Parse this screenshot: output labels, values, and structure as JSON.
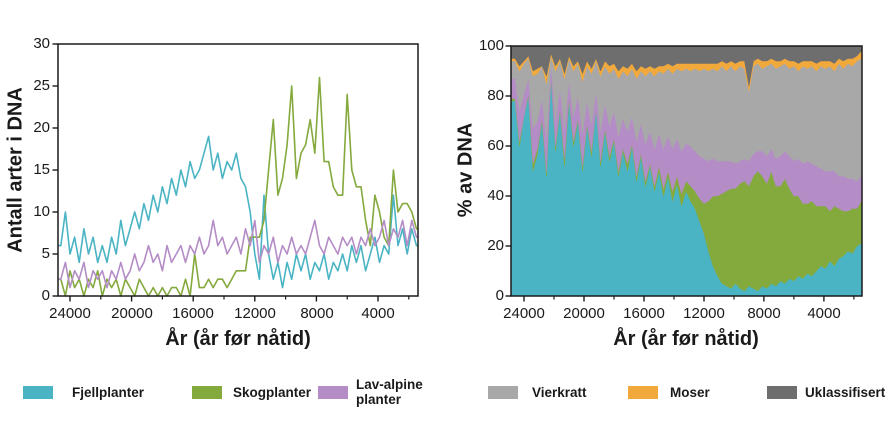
{
  "figure": {
    "background": "#ffffff",
    "text_color": "#1a1a1a"
  },
  "chart_data": [
    {
      "type": "line",
      "title": "",
      "xlabel": "År (år før nåtid)",
      "ylabel": "Antall arter i DNA",
      "x_axis_reversed": true,
      "xlim": [
        24780,
        1400
      ],
      "ylim": [
        0,
        30
      ],
      "x_ticks": [
        24000,
        20000,
        16000,
        12000,
        8000,
        4000
      ],
      "x_minor_ticks": [
        22000,
        18000,
        14000,
        10000,
        6000,
        2000
      ],
      "y_ticks": [
        0,
        5,
        10,
        15,
        20,
        25,
        30
      ],
      "grid": false,
      "legend_position": "bottom",
      "x": [
        24600,
        24300,
        24000,
        23700,
        23400,
        23100,
        22800,
        22500,
        22200,
        21900,
        21600,
        21300,
        21000,
        20700,
        20400,
        20100,
        19800,
        19500,
        19200,
        18900,
        18600,
        18300,
        18000,
        17700,
        17400,
        17100,
        16800,
        16500,
        16200,
        15900,
        15600,
        15300,
        15000,
        14700,
        14400,
        14100,
        13800,
        13500,
        13200,
        12900,
        12600,
        12300,
        12000,
        11700,
        11400,
        11100,
        10800,
        10500,
        10200,
        9900,
        9600,
        9300,
        9000,
        8700,
        8400,
        8100,
        7800,
        7500,
        7200,
        6900,
        6600,
        6300,
        6000,
        5700,
        5400,
        5100,
        4800,
        4500,
        4200,
        3900,
        3600,
        3300,
        3000,
        2700,
        2400,
        2100,
        1800,
        1500
      ],
      "series": [
        {
          "name": "Fjellplanter",
          "color": "#4ab4c4",
          "values": [
            6,
            10,
            5,
            7,
            4,
            8,
            5,
            7,
            4,
            6,
            4,
            7,
            5,
            9,
            6,
            8,
            10,
            8,
            11,
            9,
            12,
            10,
            13,
            11,
            14,
            12,
            15,
            13,
            16,
            14,
            15,
            17,
            19,
            15,
            17,
            14,
            16,
            15,
            17,
            14,
            13,
            10,
            5,
            2,
            12,
            5,
            2,
            4,
            1,
            4,
            2,
            5,
            3,
            5,
            2,
            4,
            3,
            5,
            2,
            4,
            3,
            5,
            3,
            6,
            4,
            6,
            3,
            5,
            7,
            4,
            6,
            5,
            12,
            6,
            8,
            5,
            8,
            6
          ]
        },
        {
          "name": "Skogplanter",
          "color": "#84a93d",
          "values": [
            2,
            0,
            3,
            1,
            2,
            0,
            2,
            1,
            3,
            0,
            2,
            1,
            2,
            0,
            2,
            1,
            0,
            2,
            1,
            0,
            1,
            0,
            1,
            0,
            1,
            1,
            0,
            2,
            0,
            5,
            1,
            1,
            2,
            1,
            2,
            2,
            1,
            2,
            3,
            3,
            3,
            7,
            7,
            7,
            9,
            15,
            21,
            12,
            14,
            18,
            25,
            14,
            17,
            18,
            21,
            17,
            26,
            16,
            16,
            13,
            12,
            12,
            24,
            15,
            13,
            13,
            9,
            6,
            12,
            10,
            7,
            6,
            15,
            10,
            11,
            11,
            10,
            8
          ]
        },
        {
          "name": "Lav-alpine planter",
          "color": "#b48cc6",
          "values": [
            2,
            4,
            1,
            3,
            2,
            4,
            1,
            3,
            2,
            3,
            1,
            3,
            2,
            4,
            2,
            3,
            5,
            3,
            4,
            6,
            4,
            5,
            3,
            6,
            4,
            5,
            6,
            4,
            6,
            5,
            7,
            5,
            6,
            9,
            6,
            7,
            5,
            6,
            7,
            5,
            8,
            6,
            9,
            4,
            6,
            5,
            7,
            4,
            6,
            5,
            7,
            5,
            6,
            5,
            7,
            9,
            6,
            5,
            7,
            6,
            5,
            7,
            6,
            7,
            5,
            7,
            6,
            8,
            6,
            7,
            9,
            6,
            8,
            7,
            9,
            6,
            9,
            7
          ]
        }
      ]
    },
    {
      "type": "area-stacked",
      "title": "",
      "xlabel": "År (år før nåtid)",
      "ylabel": "% av DNA",
      "x_axis_reversed": true,
      "xlim": [
        24870,
        1460
      ],
      "ylim": [
        0,
        100
      ],
      "x_ticks": [
        24000,
        20000,
        16000,
        12000,
        8000,
        4000
      ],
      "x_minor_ticks": [
        22000,
        18000,
        14000,
        10000,
        6000,
        2000
      ],
      "y_ticks": [
        0,
        20,
        40,
        60,
        80,
        100
      ],
      "grid": false,
      "legend_position": "bottom",
      "stack_total": 100,
      "x": [
        24600,
        24300,
        24000,
        23700,
        23400,
        23100,
        22800,
        22500,
        22200,
        21900,
        21600,
        21300,
        21000,
        20700,
        20400,
        20100,
        19800,
        19500,
        19200,
        18900,
        18600,
        18300,
        18000,
        17700,
        17400,
        17100,
        16800,
        16500,
        16200,
        15900,
        15600,
        15300,
        15000,
        14700,
        14400,
        14100,
        13800,
        13500,
        13200,
        12900,
        12600,
        12300,
        12000,
        11700,
        11400,
        11100,
        10800,
        10500,
        10200,
        9900,
        9600,
        9300,
        9000,
        8700,
        8400,
        8100,
        7800,
        7500,
        7200,
        6900,
        6600,
        6300,
        6000,
        5700,
        5400,
        5100,
        4800,
        4500,
        4200,
        3900,
        3600,
        3300,
        3000,
        2700,
        2400,
        2100,
        1800,
        1500
      ],
      "series": [
        {
          "name": "Fjellplanter",
          "color": "#4ab4c4",
          "values": [
            78,
            60,
            72,
            80,
            50,
            57,
            70,
            48,
            88,
            58,
            74,
            52,
            78,
            60,
            70,
            50,
            68,
            56,
            75,
            52,
            66,
            54,
            62,
            48,
            58,
            50,
            60,
            46,
            56,
            44,
            52,
            42,
            50,
            40,
            48,
            38,
            45,
            36,
            42,
            38,
            35,
            30,
            25,
            18,
            12,
            8,
            5,
            4,
            3,
            5,
            3,
            2,
            4,
            3,
            2,
            4,
            3,
            5,
            4,
            6,
            5,
            7,
            6,
            8,
            7,
            9,
            8,
            10,
            12,
            11,
            14,
            12,
            15,
            16,
            18,
            17,
            20,
            21
          ]
        },
        {
          "name": "Skogplanter",
          "color": "#84a93d",
          "values": [
            1,
            2,
            0,
            1,
            3,
            2,
            1,
            2,
            0,
            2,
            1,
            3,
            1,
            2,
            1,
            2,
            1,
            2,
            0,
            2,
            1,
            2,
            1,
            2,
            1,
            3,
            1,
            2,
            1,
            2,
            1,
            2,
            2,
            3,
            2,
            4,
            3,
            5,
            4,
            6,
            7,
            9,
            12,
            20,
            28,
            32,
            36,
            38,
            40,
            38,
            42,
            44,
            40,
            45,
            48,
            44,
            42,
            45,
            40,
            38,
            42,
            36,
            34,
            32,
            30,
            28,
            30,
            26,
            24,
            25,
            20,
            24,
            20,
            18,
            16,
            18,
            15,
            17
          ]
        },
        {
          "name": "Lav-alpine planter",
          "color": "#b48cc6",
          "values": [
            8,
            12,
            9,
            6,
            14,
            11,
            8,
            13,
            5,
            10,
            8,
            12,
            7,
            10,
            9,
            13,
            9,
            11,
            7,
            12,
            10,
            12,
            11,
            14,
            12,
            13,
            11,
            14,
            12,
            15,
            13,
            15,
            13,
            16,
            14,
            17,
            15,
            17,
            15,
            16,
            16,
            17,
            18,
            16,
            15,
            14,
            13,
            12,
            11,
            10,
            9,
            9,
            10,
            9,
            8,
            10,
            11,
            9,
            11,
            12,
            11,
            13,
            14,
            15,
            16,
            17,
            15,
            16,
            15,
            14,
            16,
            14,
            13,
            14,
            13,
            12,
            11,
            10
          ]
        },
        {
          "name": "Vierkratt",
          "color": "#a8a8a8",
          "values": [
            7,
            16,
            12,
            8,
            21,
            19,
            13,
            22,
            3,
            20,
            11,
            20,
            9,
            18,
            13,
            21,
            14,
            20,
            12,
            22,
            15,
            21,
            17,
            23,
            19,
            22,
            19,
            25,
            21,
            27,
            24,
            29,
            25,
            30,
            27,
            30,
            28,
            32,
            30,
            30,
            33,
            34,
            36,
            36,
            36,
            36,
            38,
            36,
            38,
            37,
            38,
            36,
            28,
            35,
            35,
            33,
            36,
            34,
            36,
            36,
            35,
            35,
            38,
            35,
            39,
            37,
            39,
            38,
            41,
            41,
            42,
            40,
            45,
            43,
            46,
            45,
            48,
            47
          ]
        },
        {
          "name": "Moser",
          "color": "#f2a93b",
          "values": [
            1,
            2,
            1,
            1,
            2,
            2,
            0,
            3,
            1,
            2,
            1,
            2,
            1,
            2,
            1,
            3,
            2,
            2,
            1,
            2,
            2,
            3,
            2,
            3,
            2,
            3,
            2,
            3,
            2,
            3,
            2,
            3,
            2,
            3,
            2,
            3,
            2,
            3,
            2,
            3,
            2,
            3,
            2,
            3,
            2,
            3,
            2,
            3,
            2,
            3,
            2,
            3,
            2,
            2,
            2,
            3,
            2,
            2,
            3,
            2,
            2,
            3,
            2,
            3,
            2,
            3,
            2,
            3,
            2,
            3,
            2,
            3,
            2,
            3,
            2,
            3,
            2,
            3
          ]
        },
        {
          "name": "Uklassifisert",
          "color": "#6e6e6e",
          "values": [
            5,
            8,
            6,
            4,
            10,
            9,
            8,
            12,
            3,
            8,
            5,
            11,
            4,
            8,
            6,
            11,
            6,
            9,
            5,
            10,
            6,
            8,
            7,
            10,
            8,
            9,
            7,
            10,
            8,
            9,
            8,
            9,
            8,
            8,
            7,
            8,
            7,
            7,
            7,
            7,
            7,
            7,
            7,
            7,
            7,
            7,
            6,
            7,
            6,
            7,
            6,
            6,
            16,
            6,
            5,
            6,
            6,
            5,
            6,
            6,
            5,
            6,
            6,
            7,
            6,
            6,
            6,
            7,
            6,
            6,
            6,
            7,
            5,
            6,
            5,
            5,
            4,
            2
          ]
        }
      ]
    }
  ]
}
